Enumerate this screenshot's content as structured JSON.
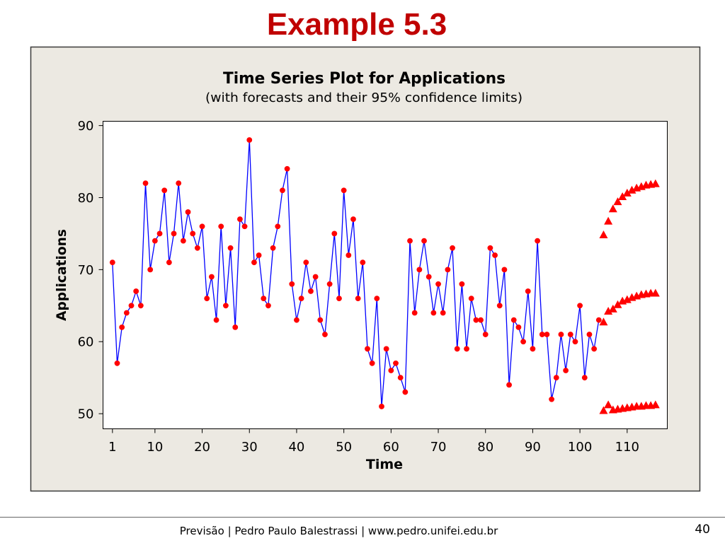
{
  "slide": {
    "title": "Example 5.3",
    "footer": "Previsão | Pedro Paulo Balestrassi | www.pedro.unifei.edu.br",
    "page_number": "40"
  },
  "colors": {
    "slide_title": "#C00000",
    "chart_panel": "#ECE9E2",
    "plot_background": "#FFFFFF"
  },
  "chart_data": {
    "type": "line",
    "title": "Time Series Plot for Applications",
    "subtitle": "(with forecasts and their 95% confidence limits)",
    "xlabel": "Time",
    "ylabel": "Applications",
    "xlim": [
      -1,
      118.5
    ],
    "ylim": [
      47.9,
      90.6
    ],
    "xticks": [
      1,
      10,
      20,
      30,
      40,
      50,
      60,
      70,
      80,
      90,
      100,
      110
    ],
    "yticks": [
      50,
      60,
      70,
      80,
      90
    ],
    "grid": false,
    "legend": "none",
    "series": [
      {
        "marker": "circle",
        "marker_color": "#FF0000",
        "line_color": "#0000FF",
        "x": [
          1,
          2,
          3,
          4,
          5,
          6,
          7,
          8,
          9,
          10,
          11,
          12,
          13,
          14,
          15,
          16,
          17,
          18,
          19,
          20,
          21,
          22,
          23,
          24,
          25,
          26,
          27,
          28,
          29,
          30,
          31,
          32,
          33,
          34,
          35,
          36,
          37,
          38,
          39,
          40,
          41,
          42,
          43,
          44,
          45,
          46,
          47,
          48,
          49,
          50,
          51,
          52,
          53,
          54,
          55,
          56,
          57,
          58,
          59,
          60,
          61,
          62,
          63,
          64,
          65,
          66,
          67,
          68,
          69,
          70,
          71,
          72,
          73,
          74,
          75,
          76,
          77,
          78,
          79,
          80,
          81,
          82,
          83,
          84,
          85,
          86,
          87,
          88,
          89,
          90,
          91,
          92,
          93,
          94,
          95,
          96,
          97,
          98,
          99,
          100,
          101,
          102,
          103,
          104
        ],
        "y": [
          71,
          57,
          62,
          64,
          65,
          67,
          65,
          82,
          70,
          74,
          75,
          81,
          71,
          75,
          82,
          74,
          78,
          75,
          73,
          76,
          66,
          69,
          63,
          76,
          65,
          73,
          62,
          77,
          76,
          88,
          71,
          72,
          66,
          65,
          73,
          76,
          81,
          84,
          68,
          63,
          66,
          71,
          67,
          69,
          63,
          61,
          68,
          75,
          66,
          81,
          72,
          77,
          66,
          71,
          59,
          57,
          66,
          51,
          59,
          56,
          57,
          55,
          53,
          74,
          64,
          70,
          74,
          69,
          64,
          68,
          64,
          70,
          73,
          59,
          68,
          59,
          66,
          63,
          63,
          61,
          73,
          72,
          65,
          70,
          54,
          63,
          62,
          60,
          67,
          59,
          74,
          61,
          61,
          52,
          55,
          61,
          56,
          61,
          60,
          65,
          55,
          61,
          59,
          63
        ]
      },
      {
        "marker": "triangle",
        "marker_color": "#FF0000",
        "x": [
          105,
          106,
          107,
          108,
          109,
          110,
          111,
          112,
          113,
          114,
          115,
          116
        ],
        "y": [
          62.7,
          64.2,
          64.5,
          65.1,
          65.6,
          65.8,
          66.1,
          66.3,
          66.5,
          66.6,
          66.7,
          66.7
        ]
      },
      {
        "marker": "triangle",
        "marker_color": "#FF0000",
        "x": [
          105,
          106,
          107,
          108,
          109,
          110,
          111,
          112,
          113,
          114,
          115,
          116
        ],
        "y": [
          74.8,
          76.7,
          78.4,
          79.4,
          80.1,
          80.6,
          81.0,
          81.3,
          81.5,
          81.7,
          81.8,
          81.9
        ]
      },
      {
        "marker": "triangle",
        "marker_color": "#FF0000",
        "x": [
          105,
          106,
          107,
          108,
          109,
          110,
          111,
          112,
          113,
          114,
          115,
          116
        ],
        "y": [
          50.4,
          51.2,
          50.5,
          50.6,
          50.7,
          50.8,
          50.9,
          51.0,
          51.0,
          51.1,
          51.1,
          51.2
        ]
      }
    ]
  }
}
